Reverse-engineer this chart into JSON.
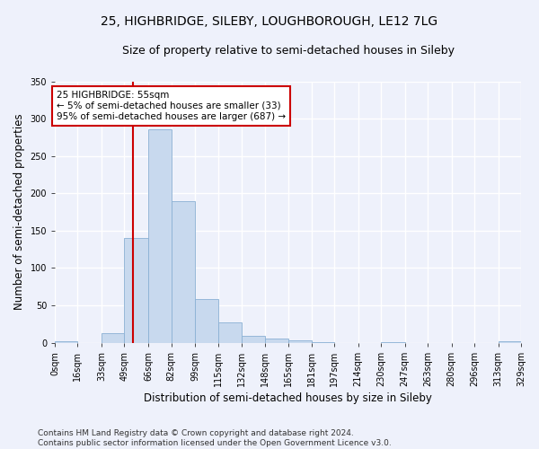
{
  "title": "25, HIGHBRIDGE, SILEBY, LOUGHBOROUGH, LE12 7LG",
  "subtitle": "Size of property relative to semi-detached houses in Sileby",
  "xlabel": "Distribution of semi-detached houses by size in Sileby",
  "ylabel": "Number of semi-detached properties",
  "bar_color": "#c8d9ee",
  "bar_edge_color": "#8ab0d4",
  "bin_edges": [
    0,
    16,
    33,
    49,
    66,
    82,
    99,
    115,
    132,
    148,
    165,
    181,
    197,
    214,
    230,
    247,
    263,
    280,
    296,
    313,
    329
  ],
  "bin_labels": [
    "0sqm",
    "16sqm",
    "33sqm",
    "49sqm",
    "66sqm",
    "82sqm",
    "99sqm",
    "115sqm",
    "132sqm",
    "148sqm",
    "165sqm",
    "181sqm",
    "197sqm",
    "214sqm",
    "230sqm",
    "247sqm",
    "263sqm",
    "280sqm",
    "296sqm",
    "313sqm",
    "329sqm"
  ],
  "counts": [
    2,
    0,
    13,
    140,
    286,
    190,
    58,
    27,
    9,
    5,
    3,
    1,
    0,
    0,
    1,
    0,
    0,
    0,
    0,
    2
  ],
  "property_size": 55,
  "property_line_color": "#cc0000",
  "annotation_text": "25 HIGHBRIDGE: 55sqm\n← 5% of semi-detached houses are smaller (33)\n95% of semi-detached houses are larger (687) →",
  "annotation_box_color": "white",
  "annotation_box_edge_color": "#cc0000",
  "ylim": [
    0,
    350
  ],
  "yticks": [
    0,
    50,
    100,
    150,
    200,
    250,
    300,
    350
  ],
  "footer_text": "Contains HM Land Registry data © Crown copyright and database right 2024.\nContains public sector information licensed under the Open Government Licence v3.0.",
  "background_color": "#eef1fb",
  "grid_color": "white",
  "title_fontsize": 10,
  "subtitle_fontsize": 9,
  "axis_label_fontsize": 8.5,
  "tick_fontsize": 7,
  "footer_fontsize": 6.5,
  "annot_fontsize": 7.5
}
